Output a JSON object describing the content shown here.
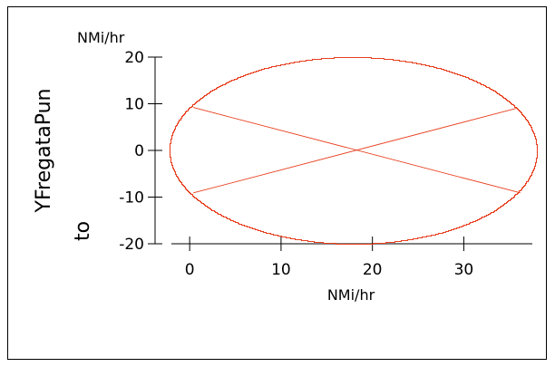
{
  "chart_data": {
    "type": "line",
    "title": "",
    "xlabel": "NMi/hr",
    "y_unit": "NMi/hr",
    "ylabel_lines": [
      "YFregataPun",
      "to"
    ],
    "xlim": [
      -2,
      37.5
    ],
    "ylim": [
      -20,
      20
    ],
    "x_ticks": [
      0,
      10,
      20,
      30
    ],
    "y_ticks": [
      -20,
      -10,
      0,
      10,
      20
    ],
    "x_tick_labels": [
      "0",
      "10",
      "20",
      "30"
    ],
    "y_tick_labels": [
      "-20",
      "-10",
      "0",
      "10",
      "20"
    ],
    "grid": false,
    "legend": "none",
    "line_color": "#e8401f",
    "series": [
      {
        "shape": "ellipse",
        "center": [
          17.9,
          0
        ],
        "radius_x": 20.1,
        "radius_y": 20,
        "style": "stepped"
      },
      {
        "shape": "segment",
        "points": [
          [
            0.4,
            9.2
          ],
          [
            36.2,
            -9.1
          ]
        ]
      },
      {
        "shape": "segment",
        "points": [
          [
            0.4,
            -9.1
          ],
          [
            35.9,
            9.1
          ]
        ]
      }
    ]
  }
}
